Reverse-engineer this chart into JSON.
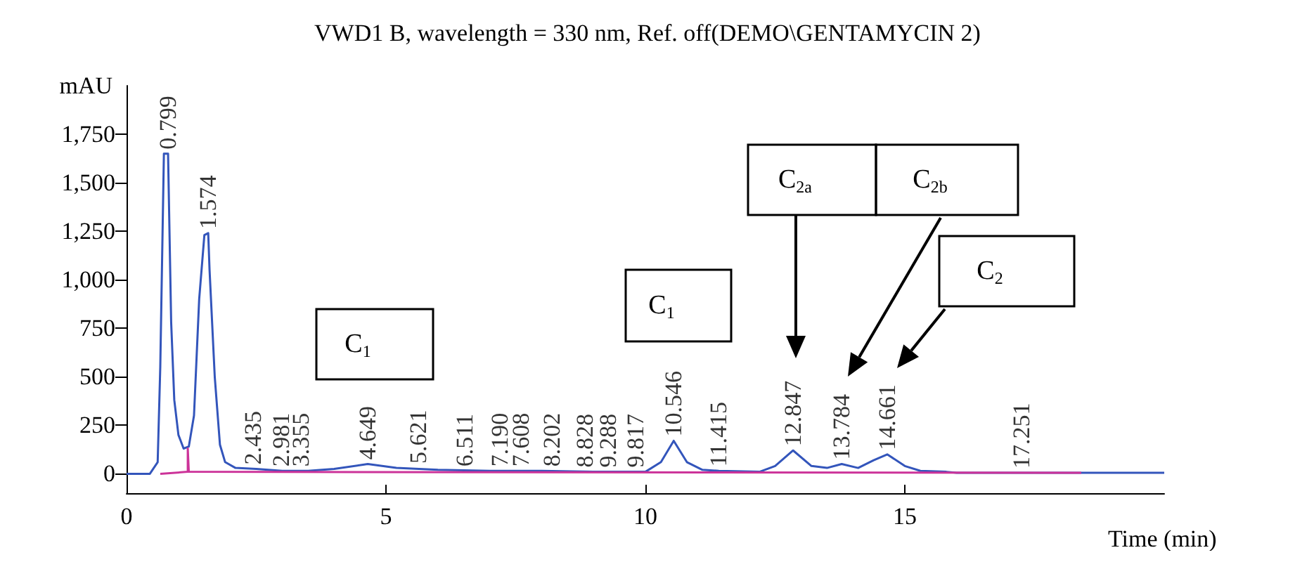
{
  "chart_data": {
    "type": "line",
    "title": "VWD1 B, wavelength = 330 nm, Ref. off(DEMO\\GENTAMYCIN 2)",
    "xlabel": "Time (min)",
    "ylabel": "mAU",
    "xlim": [
      0,
      20
    ],
    "xticks": [
      0,
      5,
      10,
      15
    ],
    "ylim": [
      -100,
      2000
    ],
    "yticks": [
      0,
      250,
      500,
      750,
      {
        "value": 1000,
        "label": "1,000"
      },
      {
        "value": 1250,
        "label": "1,250"
      },
      {
        "value": 1500,
        "label": "1,500"
      },
      {
        "value": 1750,
        "label": "1,750"
      }
    ],
    "grid": false,
    "series": [
      {
        "color": "#3355bb",
        "x": [
          0,
          0.45,
          0.6,
          0.65,
          0.72,
          0.8,
          0.86,
          0.92,
          1.0,
          1.1,
          1.2,
          1.3,
          1.4,
          1.5,
          1.574,
          1.6,
          1.7,
          1.8,
          1.9,
          2.1,
          2.5,
          3,
          3.5,
          4,
          4.649,
          5.2,
          6,
          7,
          8,
          9,
          10,
          10.3,
          10.546,
          10.8,
          11.1,
          11.415,
          12.2,
          12.5,
          12.847,
          13.2,
          13.5,
          13.784,
          14.1,
          14.4,
          14.661,
          15,
          15.3,
          15.8,
          16,
          20
        ],
        "values": [
          0,
          0,
          60,
          550,
          1650,
          1650,
          780,
          380,
          200,
          130,
          140,
          300,
          900,
          1230,
          1240,
          1050,
          500,
          150,
          60,
          30,
          25,
          15,
          15,
          25,
          50,
          30,
          20,
          15,
          15,
          10,
          10,
          60,
          170,
          60,
          20,
          15,
          10,
          40,
          120,
          40,
          30,
          50,
          30,
          70,
          100,
          40,
          15,
          10,
          5,
          5
        ]
      },
      {
        "color": "#cc3399",
        "x": [
          0.65,
          1.18,
          1.18,
          1.2,
          18.4
        ],
        "values": [
          0,
          10,
          130,
          10,
          5
        ]
      }
    ],
    "annotations": [
      "C$_{1}$",
      "C$_{1}$",
      "C$_{2a}$",
      "C$_{2b}$",
      "C$_{2}$",
      {
        "text": "0.799",
        "x": 0.799,
        "y": 1650
      },
      {
        "text": "1.574",
        "x": 1.574,
        "y": 1240
      },
      {
        "text": "2.435",
        "x": 2.435,
        "y": 25
      },
      {
        "text": "2.981",
        "x": 2.981,
        "y": 15
      },
      {
        "text": "3.355",
        "x": 3.355,
        "y": 15
      },
      {
        "text": "4.649",
        "x": 4.649,
        "y": 50
      },
      {
        "text": "5.621",
        "x": 5.621,
        "y": 30
      },
      {
        "text": "6.511",
        "x": 6.511,
        "y": 15
      },
      {
        "text": "7.190",
        "x": 7.19,
        "y": 15
      },
      {
        "text": "7.608",
        "x": 7.608,
        "y": 15
      },
      {
        "text": "8.202",
        "x": 8.202,
        "y": 15
      },
      {
        "text": "8.828",
        "x": 8.828,
        "y": 10
      },
      {
        "text": "9.288",
        "x": 9.288,
        "y": 10
      },
      {
        "text": "9.817",
        "x": 9.817,
        "y": 10
      },
      {
        "text": "10.546",
        "x": 10.546,
        "y": 170
      },
      {
        "text": "11.415",
        "x": 11.415,
        "y": 15
      },
      {
        "text": "12.847",
        "x": 12.847,
        "y": 120
      },
      {
        "text": "13.784",
        "x": 13.784,
        "y": 50
      },
      {
        "text": "14.661",
        "x": 14.661,
        "y": 100
      },
      {
        "text": "17.251",
        "x": 17.251,
        "y": 5
      }
    ]
  }
}
